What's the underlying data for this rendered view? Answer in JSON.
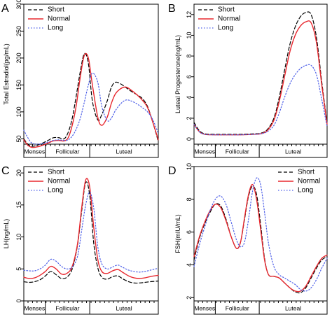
{
  "chart_data": [
    {
      "panel": "A",
      "type": "line",
      "ylabel": "Total Estradiol(pg/mL)",
      "ylim": [
        40,
        300
      ],
      "yticks": [
        50,
        100,
        150,
        200,
        250,
        300
      ],
      "xlim": [
        0,
        1
      ],
      "phases": [
        "Menses",
        "Follicular",
        "Luteal"
      ],
      "phase_bounds": [
        0.16,
        0.49
      ],
      "legend": [
        "Short",
        "Normal",
        "Long"
      ],
      "legend_position": "top-left",
      "series": [
        {
          "name": "Short",
          "color": "#000000",
          "dash": "dashed",
          "x": [
            0.0,
            0.03,
            0.06,
            0.1,
            0.14,
            0.18,
            0.22,
            0.26,
            0.3,
            0.33,
            0.36,
            0.39,
            0.42,
            0.45,
            0.48,
            0.51,
            0.55,
            0.58,
            0.62,
            0.65,
            0.68,
            0.72,
            0.76,
            0.8,
            0.84,
            0.88,
            0.92,
            0.96,
            1.0
          ],
          "values": [
            50,
            40,
            36,
            38,
            42,
            47,
            52,
            52,
            50,
            62,
            88,
            130,
            175,
            208,
            190,
            120,
            85,
            95,
            120,
            145,
            155,
            152,
            145,
            138,
            132,
            125,
            110,
            80,
            45
          ]
        },
        {
          "name": "Normal",
          "color": "#e8282f",
          "dash": "solid",
          "x": [
            0.0,
            0.03,
            0.06,
            0.1,
            0.14,
            0.18,
            0.22,
            0.26,
            0.3,
            0.33,
            0.36,
            0.39,
            0.42,
            0.45,
            0.48,
            0.51,
            0.55,
            0.58,
            0.62,
            0.65,
            0.68,
            0.72,
            0.76,
            0.8,
            0.84,
            0.88,
            0.92,
            0.96,
            1.0
          ],
          "values": [
            48,
            38,
            34,
            35,
            38,
            42,
            46,
            47,
            46,
            52,
            75,
            112,
            165,
            205,
            200,
            150,
            90,
            75,
            90,
            115,
            133,
            143,
            146,
            140,
            132,
            122,
            108,
            80,
            48
          ]
        },
        {
          "name": "Long",
          "color": "#4d5fe8",
          "dash": "dotted",
          "x": [
            0.0,
            0.03,
            0.06,
            0.1,
            0.14,
            0.18,
            0.22,
            0.26,
            0.3,
            0.33,
            0.36,
            0.39,
            0.42,
            0.45,
            0.48,
            0.51,
            0.55,
            0.58,
            0.62,
            0.65,
            0.68,
            0.72,
            0.76,
            0.8,
            0.84,
            0.88,
            0.92,
            0.96,
            1.0
          ],
          "values": [
            66,
            52,
            42,
            40,
            41,
            44,
            47,
            48,
            47,
            48,
            55,
            68,
            88,
            118,
            150,
            172,
            155,
            110,
            84,
            88,
            102,
            115,
            122,
            120,
            115,
            108,
            100,
            85,
            60
          ]
        }
      ]
    },
    {
      "panel": "B",
      "type": "line",
      "ylabel": "Luteal Progesterone(ng/mL)",
      "ylim": [
        -0.5,
        13
      ],
      "yticks": [
        0,
        2,
        4,
        6,
        8,
        10,
        12
      ],
      "xlim": [
        0,
        1
      ],
      "phases": [
        "Menses",
        "Follicular",
        "Luteal"
      ],
      "phase_bounds": [
        0.16,
        0.49
      ],
      "legend": [
        "Short",
        "Normal",
        "Long"
      ],
      "legend_position": "top-left",
      "series": [
        {
          "name": "Short",
          "color": "#000000",
          "dash": "dashed",
          "x": [
            0.0,
            0.04,
            0.08,
            0.15,
            0.25,
            0.35,
            0.45,
            0.5,
            0.55,
            0.6,
            0.64,
            0.68,
            0.72,
            0.76,
            0.8,
            0.84,
            0.88,
            0.92,
            0.96,
            1.0
          ],
          "values": [
            1.6,
            0.8,
            0.5,
            0.45,
            0.45,
            0.45,
            0.5,
            0.55,
            0.9,
            2.0,
            4.0,
            6.6,
            9.1,
            10.8,
            11.8,
            12.2,
            12.0,
            9.8,
            5.5,
            1.5
          ]
        },
        {
          "name": "Normal",
          "color": "#e8282f",
          "dash": "solid",
          "x": [
            0.0,
            0.04,
            0.08,
            0.15,
            0.25,
            0.35,
            0.45,
            0.5,
            0.55,
            0.6,
            0.64,
            0.68,
            0.72,
            0.76,
            0.8,
            0.84,
            0.88,
            0.92,
            0.96,
            1.0
          ],
          "values": [
            1.4,
            0.7,
            0.45,
            0.4,
            0.4,
            0.4,
            0.45,
            0.5,
            0.8,
            1.8,
            3.6,
            6.0,
            8.4,
            10.0,
            10.9,
            11.3,
            11.2,
            9.3,
            5.2,
            1.4
          ]
        },
        {
          "name": "Long",
          "color": "#4d5fe8",
          "dash": "dotted",
          "x": [
            0.0,
            0.04,
            0.08,
            0.15,
            0.25,
            0.35,
            0.45,
            0.5,
            0.55,
            0.6,
            0.64,
            0.68,
            0.72,
            0.76,
            0.8,
            0.84,
            0.88,
            0.92,
            0.96,
            1.0
          ],
          "values": [
            1.4,
            0.7,
            0.45,
            0.4,
            0.4,
            0.4,
            0.45,
            0.5,
            0.7,
            1.3,
            2.5,
            4.0,
            5.3,
            6.2,
            6.8,
            7.1,
            7.1,
            6.2,
            3.8,
            1.2
          ]
        }
      ]
    },
    {
      "panel": "C",
      "type": "line",
      "ylabel": "LH(ng/mL)",
      "ylim": [
        0,
        21
      ],
      "yticks": [
        0,
        5,
        10,
        15,
        20
      ],
      "xlim": [
        0,
        1
      ],
      "phases": [
        "Menses",
        "Follicular",
        "Luteal"
      ],
      "phase_bounds": [
        0.16,
        0.49
      ],
      "legend": [
        "Short",
        "Normal",
        "Long"
      ],
      "legend_position": "top-left",
      "series": [
        {
          "name": "Short",
          "color": "#000000",
          "dash": "dashed",
          "x": [
            0.0,
            0.04,
            0.08,
            0.12,
            0.16,
            0.2,
            0.24,
            0.28,
            0.32,
            0.36,
            0.4,
            0.43,
            0.46,
            0.49,
            0.52,
            0.55,
            0.58,
            0.62,
            0.66,
            0.7,
            0.74,
            0.78,
            0.82,
            0.86,
            0.9,
            0.94,
            1.0
          ],
          "values": [
            3.0,
            2.9,
            3.0,
            3.3,
            3.9,
            4.6,
            4.1,
            3.5,
            3.7,
            5.0,
            8.8,
            14.0,
            18.5,
            16.5,
            9.0,
            5.2,
            3.7,
            3.4,
            3.8,
            3.9,
            3.4,
            3.0,
            2.8,
            2.8,
            2.9,
            3.0,
            3.1
          ]
        },
        {
          "name": "Normal",
          "color": "#e8282f",
          "dash": "solid",
          "x": [
            0.0,
            0.04,
            0.08,
            0.12,
            0.16,
            0.2,
            0.24,
            0.28,
            0.32,
            0.36,
            0.4,
            0.43,
            0.46,
            0.49,
            0.52,
            0.55,
            0.58,
            0.62,
            0.66,
            0.7,
            0.74,
            0.78,
            0.82,
            0.86,
            0.9,
            0.94,
            1.0
          ],
          "values": [
            3.7,
            3.5,
            3.6,
            4.0,
            4.6,
            5.4,
            5.0,
            4.2,
            4.3,
            5.4,
            9.0,
            14.5,
            18.9,
            17.8,
            11.5,
            6.5,
            4.6,
            4.3,
            4.7,
            4.9,
            4.4,
            3.9,
            3.6,
            3.5,
            3.6,
            3.8,
            4.0
          ]
        },
        {
          "name": "Long",
          "color": "#4d5fe8",
          "dash": "dotted",
          "x": [
            0.0,
            0.04,
            0.08,
            0.12,
            0.16,
            0.2,
            0.24,
            0.28,
            0.32,
            0.36,
            0.4,
            0.43,
            0.46,
            0.49,
            0.52,
            0.55,
            0.58,
            0.62,
            0.66,
            0.7,
            0.74,
            0.78,
            0.82,
            0.86,
            0.9,
            0.94,
            1.0
          ],
          "values": [
            4.8,
            4.7,
            4.7,
            5.0,
            5.6,
            6.5,
            6.2,
            5.4,
            5.0,
            5.3,
            7.0,
            11.0,
            15.0,
            17.0,
            14.5,
            8.5,
            5.8,
            5.0,
            5.3,
            5.6,
            5.2,
            4.8,
            4.6,
            4.5,
            4.6,
            4.8,
            5.1
          ]
        }
      ]
    },
    {
      "panel": "D",
      "type": "line",
      "ylabel": "FSH(mIU/mL)",
      "ylim": [
        1.8,
        10
      ],
      "yticks": [
        2,
        4,
        6,
        8,
        10
      ],
      "xlim": [
        0,
        1
      ],
      "phases": [
        "Menses",
        "Follicular",
        "Luteal"
      ],
      "phase_bounds": [
        0.16,
        0.49
      ],
      "legend": [
        "Short",
        "Normal",
        "Long"
      ],
      "legend_position": "top-right",
      "series": [
        {
          "name": "Short",
          "color": "#000000",
          "dash": "dashed",
          "x": [
            0.0,
            0.04,
            0.08,
            0.12,
            0.16,
            0.2,
            0.24,
            0.28,
            0.32,
            0.35,
            0.38,
            0.41,
            0.44,
            0.47,
            0.5,
            0.53,
            0.56,
            0.6,
            0.64,
            0.68,
            0.72,
            0.76,
            0.8,
            0.84,
            0.88,
            0.92,
            0.96,
            1.0
          ],
          "values": [
            4.3,
            5.6,
            6.5,
            7.2,
            7.7,
            7.6,
            6.8,
            5.7,
            5.0,
            5.4,
            6.8,
            8.2,
            8.8,
            8.3,
            6.5,
            4.4,
            3.4,
            3.3,
            3.2,
            2.9,
            2.6,
            2.35,
            2.3,
            2.6,
            3.2,
            3.8,
            4.3,
            4.5
          ]
        },
        {
          "name": "Normal",
          "color": "#e8282f",
          "dash": "solid",
          "x": [
            0.0,
            0.04,
            0.08,
            0.12,
            0.16,
            0.2,
            0.24,
            0.28,
            0.32,
            0.35,
            0.38,
            0.41,
            0.44,
            0.47,
            0.5,
            0.53,
            0.56,
            0.6,
            0.64,
            0.68,
            0.72,
            0.76,
            0.8,
            0.84,
            0.88,
            0.92,
            0.96,
            1.0
          ],
          "values": [
            4.5,
            5.7,
            6.6,
            7.3,
            7.7,
            7.5,
            6.7,
            5.7,
            5.0,
            5.4,
            6.9,
            8.3,
            8.9,
            8.0,
            6.2,
            4.3,
            3.4,
            3.3,
            3.2,
            2.9,
            2.6,
            2.4,
            2.4,
            2.7,
            3.3,
            3.9,
            4.4,
            4.6
          ]
        },
        {
          "name": "Long",
          "color": "#4d5fe8",
          "dash": "dotted",
          "x": [
            0.0,
            0.04,
            0.08,
            0.12,
            0.16,
            0.2,
            0.24,
            0.28,
            0.32,
            0.35,
            0.38,
            0.41,
            0.44,
            0.47,
            0.5,
            0.53,
            0.56,
            0.6,
            0.64,
            0.68,
            0.72,
            0.76,
            0.8,
            0.84,
            0.88,
            0.92,
            0.96,
            1.0
          ],
          "values": [
            3.9,
            5.2,
            6.3,
            7.3,
            8.0,
            8.2,
            7.7,
            6.6,
            5.5,
            5.1,
            5.4,
            6.8,
            8.5,
            9.3,
            8.9,
            7.2,
            5.3,
            3.9,
            3.4,
            3.2,
            3.0,
            2.8,
            2.5,
            2.4,
            2.6,
            3.1,
            3.8,
            4.4
          ]
        }
      ]
    }
  ]
}
